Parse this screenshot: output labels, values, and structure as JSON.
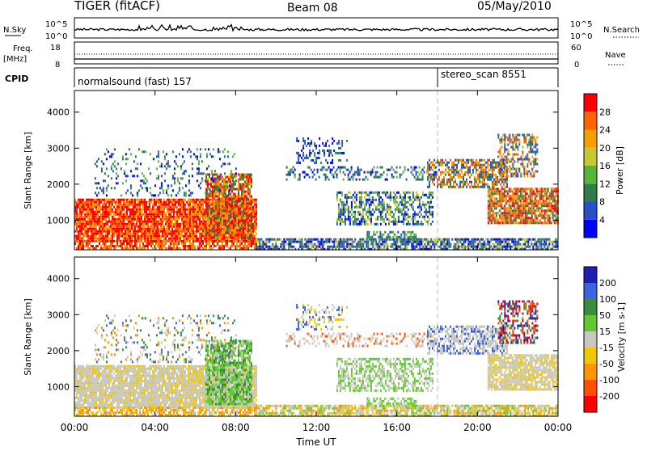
{
  "header": {
    "title": "TIGER (fitACF)",
    "beam": "Beam 08",
    "date": "05/May/2010"
  },
  "panels": {
    "sky_label": "N.Sky",
    "sky_ticks": [
      "10^5",
      "10^0"
    ],
    "search_label": "N.Search",
    "freq_label": "Freq.",
    "freq_unit": "[MHz]",
    "freq_ticks": [
      "18",
      "8"
    ],
    "nave_label": "Nave",
    "nave_ticks": [
      "60",
      "0"
    ],
    "cpid_label": "CPID",
    "cpid_programs": [
      {
        "name": "normalsound (fast) 157",
        "start_hour": 0
      },
      {
        "name": "stereo_scan 8551",
        "start_hour": 18.0
      }
    ]
  },
  "chart_data": [
    {
      "type": "heatmap",
      "name": "power",
      "ylabel": "Slant Range [km]",
      "yticks": [
        1000,
        2000,
        3000,
        4000
      ],
      "ylim": [
        180,
        4600
      ],
      "xlabel": "Time UT",
      "xticks": [
        "00:00",
        "04:00",
        "08:00",
        "12:00",
        "16:00",
        "20:00",
        "00:00"
      ],
      "xlim_hours": [
        0,
        24
      ],
      "colorbar_label": "Power [dB]",
      "colorbar_ticks": [
        "4",
        "8",
        "12",
        "16",
        "20",
        "24",
        "28"
      ],
      "colorbar_colors": [
        "#0000ff",
        "#2850c8",
        "#2e7d4a",
        "#5ab43c",
        "#c8c832",
        "#f5a000",
        "#ff6400",
        "#ff0000"
      ]
    },
    {
      "type": "heatmap",
      "name": "velocity",
      "ylabel": "Slant Range [km]",
      "yticks": [
        1000,
        2000,
        3000,
        4000
      ],
      "ylim": [
        180,
        4600
      ],
      "xlabel": "Time UT",
      "xticks": [
        "00:00",
        "04:00",
        "08:00",
        "12:00",
        "16:00",
        "20:00",
        "00:00"
      ],
      "xlim_hours": [
        0,
        24
      ],
      "colorbar_label": "Velocity [m s-1]",
      "colorbar_ticks": [
        "200",
        "100",
        "50",
        "15",
        "-15",
        "-50",
        "-100",
        "-200"
      ],
      "colorbar_colors": [
        "#1e1eb4",
        "#3c64dc",
        "#3c8c3c",
        "#64c832",
        "#c8c8c0",
        "#f0c800",
        "#ff9600",
        "#ff5000",
        "#ff0000"
      ]
    }
  ]
}
